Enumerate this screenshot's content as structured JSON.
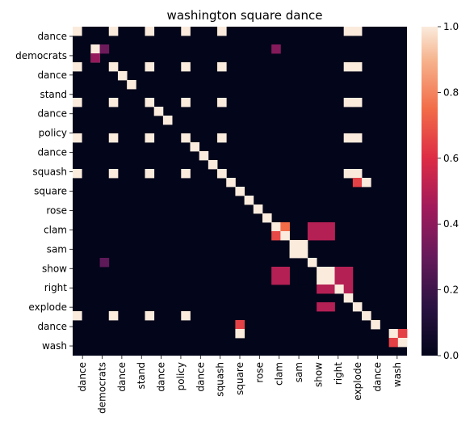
{
  "chart_data": {
    "type": "heatmap",
    "title": "washington square dance",
    "labels": [
      "dance",
      "democrats",
      "dance",
      "stand",
      "dance",
      "policy",
      "dance",
      "squash",
      "square",
      "rose",
      "clam",
      "sam",
      "show",
      "right",
      "explode",
      "dance",
      "wash"
    ],
    "y_tick_labels": [
      "dance",
      "democrats",
      "dance",
      "stand",
      "dance",
      "policy",
      "dance",
      "squash",
      "square",
      "rose",
      "clam",
      "sam",
      "show",
      "right",
      "explode",
      "dance",
      "wash"
    ],
    "x_tick_labels": [
      "dance",
      "democrats",
      "dance",
      "stand",
      "dance",
      "policy",
      "dance",
      "squash",
      "square",
      "rose",
      "clam",
      "sam",
      "show",
      "right",
      "explode",
      "dance",
      "wash"
    ],
    "colorbar": {
      "min": 0.0,
      "max": 1.0,
      "ticks": [
        "0.0",
        "0.2",
        "0.4",
        "0.6",
        "0.8",
        "1.0"
      ]
    },
    "cell_groups": [
      {
        "rows": [
          0,
          4,
          8,
          12,
          16
        ],
        "cols": [
          0,
          4,
          8,
          12,
          16
        ],
        "value": 1.0
      },
      {
        "rows": [
          0,
          4,
          8,
          12,
          16
        ],
        "cols": [
          30,
          31
        ],
        "value": 1.0
      },
      {
        "rows": [
          2,
          3
        ],
        "cols": [
          2
        ],
        "value": 1.0
      },
      {
        "rows": [
          2
        ],
        "cols": [
          3
        ],
        "value": 0.32
      },
      {
        "rows": [
          3
        ],
        "cols": [
          2
        ],
        "value": 0.42
      },
      {
        "rows": [
          2
        ],
        "cols": [
          22
        ],
        "value": 0.38
      },
      {
        "rows": [
          5
        ],
        "cols": [
          5
        ],
        "value": 1.0
      },
      {
        "rows": [
          6
        ],
        "cols": [
          6
        ],
        "value": 1.0
      },
      {
        "rows": [
          9
        ],
        "cols": [
          9
        ],
        "value": 1.0
      },
      {
        "rows": [
          10
        ],
        "cols": [
          10
        ],
        "value": 1.0
      },
      {
        "rows": [
          13
        ],
        "cols": [
          13
        ],
        "value": 1.0
      },
      {
        "rows": [
          14
        ],
        "cols": [
          14
        ],
        "value": 1.0
      },
      {
        "rows": [
          15
        ],
        "cols": [
          15
        ],
        "value": 1.0
      },
      {
        "rows": [
          16
        ],
        "cols": [
          16
        ],
        "value": 1.0
      },
      {
        "rows": [
          17
        ],
        "cols": [
          17
        ],
        "value": 1.0
      },
      {
        "rows": [
          17
        ],
        "cols": [
          31
        ],
        "value": 0.65
      },
      {
        "rows": [
          17
        ],
        "cols": [
          32
        ],
        "value": 1.0
      },
      {
        "rows": [
          18
        ],
        "cols": [
          18
        ],
        "value": 1.0
      },
      {
        "rows": [
          19
        ],
        "cols": [
          19
        ],
        "value": 1.0
      },
      {
        "rows": [
          20
        ],
        "cols": [
          20
        ],
        "value": 1.0
      },
      {
        "rows": [
          21
        ],
        "cols": [
          21
        ],
        "value": 1.0
      },
      {
        "rows": [
          22
        ],
        "cols": [
          22
        ],
        "value": 1.0
      },
      {
        "rows": [
          22
        ],
        "cols": [
          23
        ],
        "value": 0.75
      },
      {
        "rows": [
          23
        ],
        "cols": [
          22
        ],
        "value": 0.67
      },
      {
        "rows": [
          23
        ],
        "cols": [
          23
        ],
        "value": 1.0
      },
      {
        "rows": [
          22,
          23
        ],
        "cols": [
          26,
          27,
          28
        ],
        "value": 0.5
      },
      {
        "rows": [
          24,
          25
        ],
        "cols": [
          24,
          25
        ],
        "value": 1.0
      },
      {
        "rows": [
          26
        ],
        "cols": [
          26
        ],
        "value": 1.0
      },
      {
        "rows": [
          26
        ],
        "cols": [
          3
        ],
        "value": 0.28
      },
      {
        "rows": [
          27,
          28
        ],
        "cols": [
          22,
          23
        ],
        "value": 0.5
      },
      {
        "rows": [
          27,
          28
        ],
        "cols": [
          27,
          28
        ],
        "value": 1.0
      },
      {
        "rows": [
          27,
          28
        ],
        "cols": [
          29
        ],
        "value": 0.5
      },
      {
        "rows": [
          29
        ],
        "cols": [
          27,
          28
        ],
        "value": 0.5
      },
      {
        "rows": [
          29
        ],
        "cols": [
          29
        ],
        "value": 1.0
      },
      {
        "rows": [
          27,
          28
        ],
        "cols": [
          25
        ],
        "value": 0.0
      },
      {
        "rows": [
          27,
          28,
          29
        ],
        "cols": [
          30
        ],
        "value": 0.5
      },
      {
        "rows": [
          30
        ],
        "cols": [
          30
        ],
        "value": 1.0
      },
      {
        "rows": [
          31
        ],
        "cols": [
          31
        ],
        "value": 1.0
      },
      {
        "rows": [
          31
        ],
        "cols": [
          27,
          28
        ],
        "value": 0.5
      },
      {
        "rows": [
          32
        ],
        "cols": [
          32
        ],
        "value": 1.0
      },
      {
        "rows": [
          33
        ],
        "cols": [
          33
        ],
        "value": 1.0
      },
      {
        "rows": [
          33
        ],
        "cols": [
          18
        ],
        "value": 0.65
      },
      {
        "rows": [
          34
        ],
        "cols": [
          18
        ],
        "value": 1.0
      },
      {
        "rows": [
          34
        ],
        "cols": [
          35
        ],
        "value": 1.0
      },
      {
        "rows": [
          34
        ],
        "cols": [
          36
        ],
        "value": 0.65
      },
      {
        "rows": [
          35
        ],
        "cols": [
          35
        ],
        "value": 0.65
      },
      {
        "rows": [
          35
        ],
        "cols": [
          36
        ],
        "value": 1.0
      },
      {
        "rows": [
          32
        ],
        "cols": [
          0,
          4,
          8,
          12
        ],
        "value": 1.0
      }
    ]
  }
}
